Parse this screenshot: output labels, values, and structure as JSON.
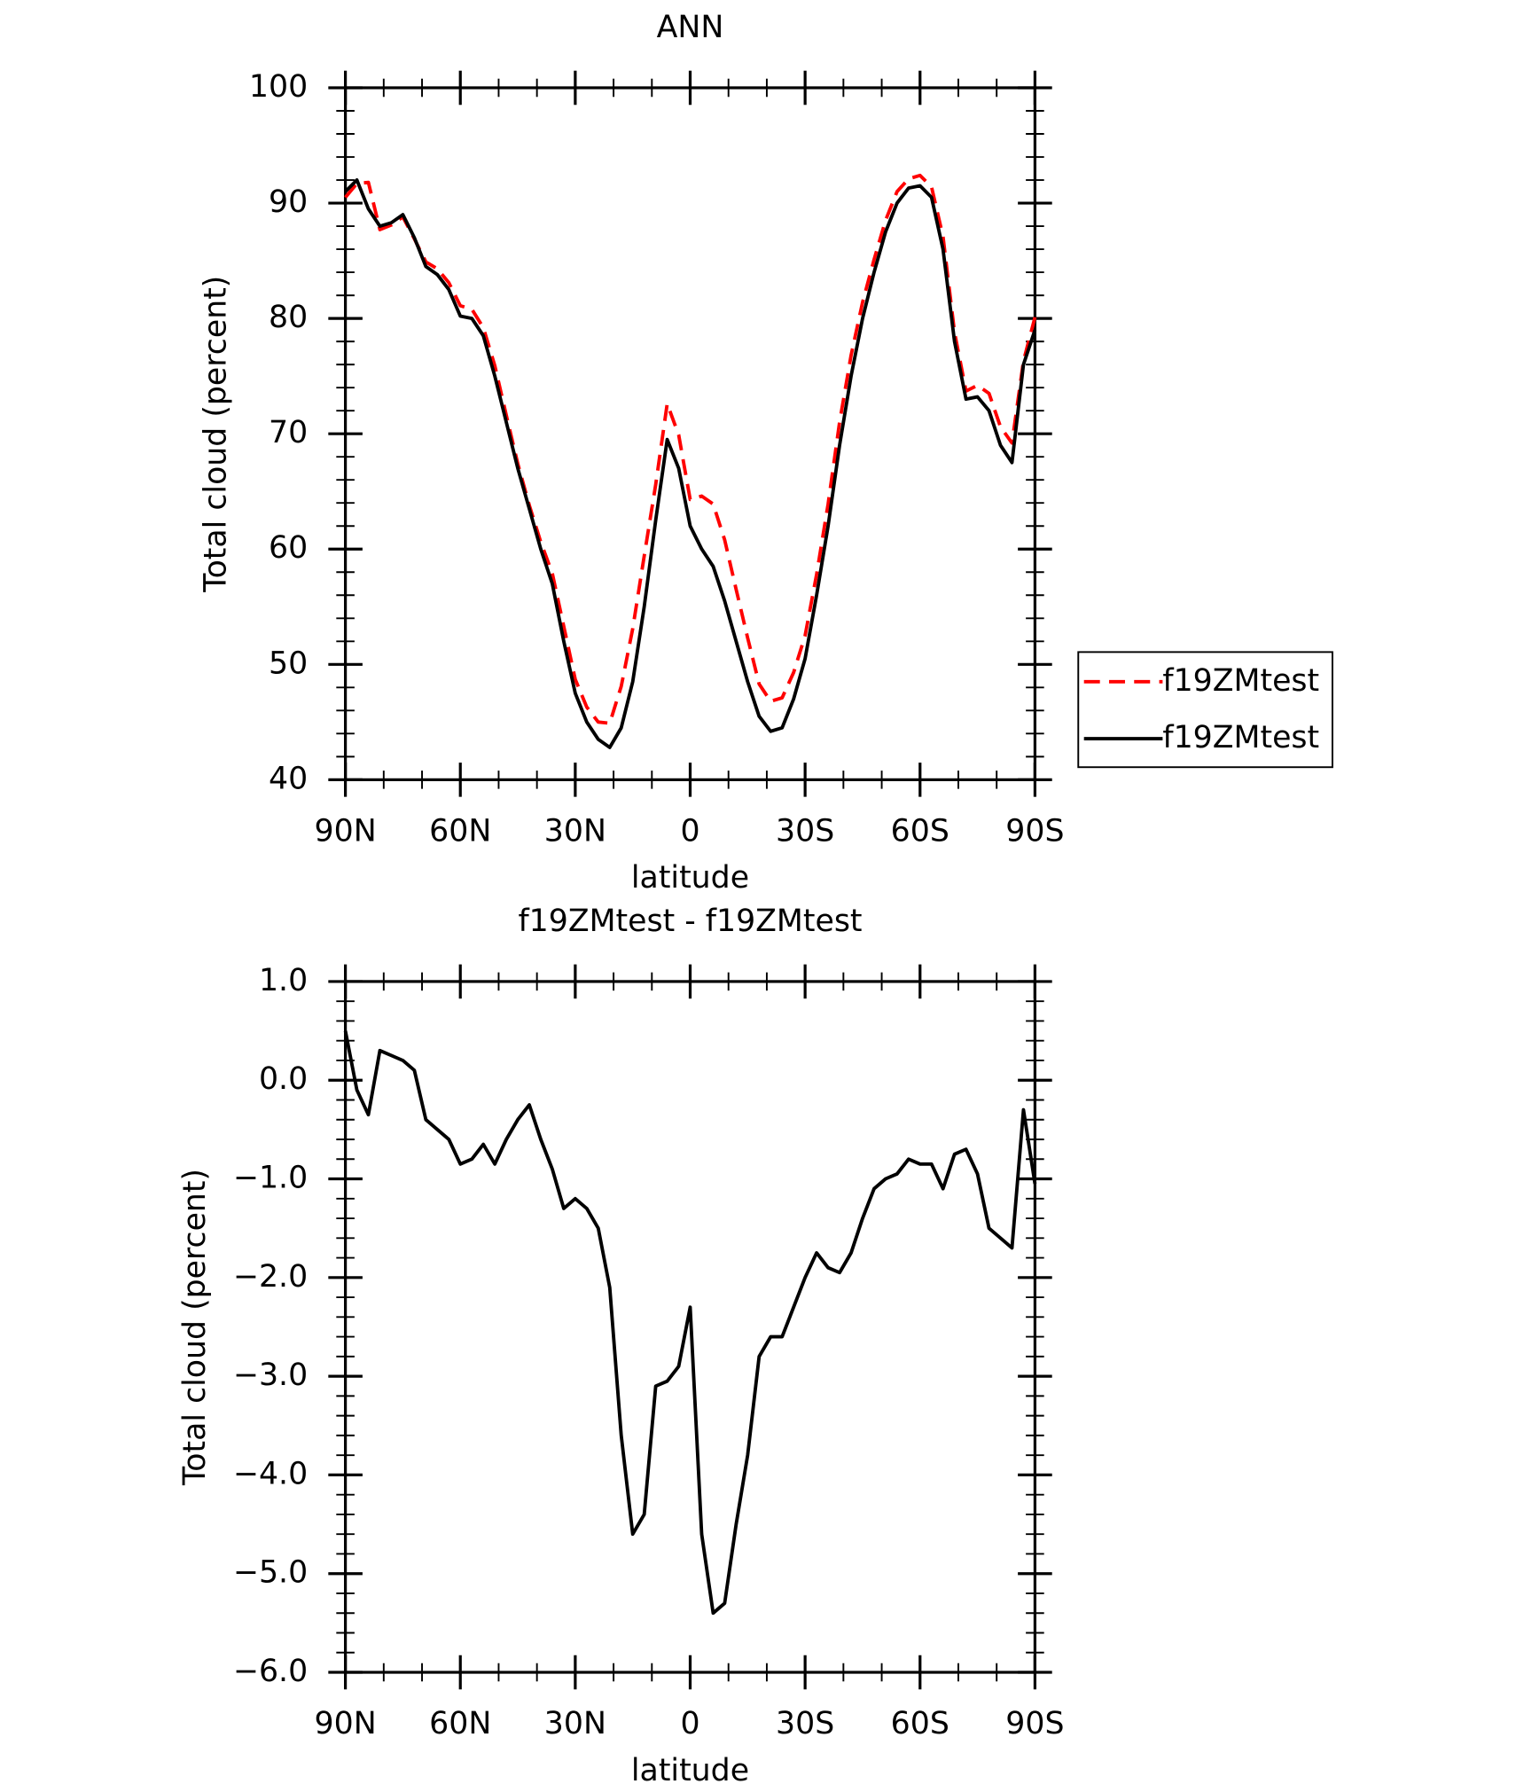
{
  "chart_data": [
    {
      "type": "line",
      "title": "ANN",
      "xlabel": "latitude",
      "ylabel": "Total cloud (percent)",
      "x": [
        90,
        87,
        84,
        81,
        78,
        75,
        72,
        69,
        66,
        63,
        60,
        57,
        54,
        51,
        48,
        45,
        42,
        39,
        36,
        33,
        30,
        27,
        24,
        21,
        18,
        15,
        12,
        9,
        6,
        3,
        0,
        -3,
        -6,
        -9,
        -12,
        -15,
        -18,
        -21,
        -24,
        -27,
        -30,
        -33,
        -36,
        -39,
        -42,
        -45,
        -48,
        -51,
        -54,
        -57,
        -60,
        -63,
        -66,
        -69,
        -72,
        -75,
        -78,
        -81,
        -84,
        -87,
        -90
      ],
      "xlim": [
        90,
        -90
      ],
      "xticks": [
        {
          "value": 90,
          "label": "90N"
        },
        {
          "value": 60,
          "label": "60N"
        },
        {
          "value": 30,
          "label": "30N"
        },
        0,
        {
          "value": -30,
          "label": "30S"
        },
        {
          "value": -60,
          "label": "60S"
        },
        {
          "value": -90,
          "label": "90S"
        }
      ],
      "ylim": [
        40,
        100
      ],
      "yticks": [
        40,
        50,
        60,
        70,
        80,
        90,
        100
      ],
      "legend": "right",
      "series": [
        {
          "name": "f19ZMtest",
          "color": "#ff0000",
          "style": "dashed",
          "values": [
            90.5,
            91.7,
            91.8,
            87.7,
            88.1,
            88.8,
            86.9,
            84.9,
            84.3,
            83.1,
            81.1,
            80.8,
            79.2,
            75.9,
            71.6,
            67.4,
            63.8,
            60.6,
            57.9,
            53.3,
            48.7,
            46.3,
            45,
            44.9,
            48.1,
            53.1,
            59.4,
            65.6,
            72.6,
            69.9,
            64.3,
            64.6,
            63.9,
            60.8,
            56.5,
            52.3,
            48.3,
            46.8,
            47.1,
            49.3,
            52.5,
            57.8,
            63.9,
            71,
            76.8,
            81.4,
            85.1,
            88.5,
            91,
            92.1,
            92.4,
            91.4,
            87.1,
            78.8,
            73.7,
            74.2,
            73.5,
            70.6,
            69.2,
            76.3,
            80.1
          ]
        },
        {
          "name": "f19ZMtest",
          "color": "#000000",
          "style": "solid",
          "values": [
            91,
            92,
            89.5,
            88,
            88.3,
            89,
            87,
            84.5,
            83.8,
            82.5,
            80.2,
            80,
            78.5,
            75,
            71,
            67,
            63.5,
            60,
            57,
            52,
            47.5,
            45,
            43.5,
            42.8,
            44.5,
            48.5,
            55,
            62.5,
            69.5,
            67,
            62,
            60,
            58.5,
            55.5,
            52,
            48.5,
            45.5,
            44.2,
            44.5,
            47,
            50.5,
            56,
            62,
            69,
            75,
            80,
            84,
            87.5,
            90,
            91.3,
            91.5,
            90.5,
            86,
            78,
            73,
            73.2,
            72,
            69,
            67.5,
            76,
            79
          ]
        }
      ]
    },
    {
      "type": "line",
      "title": "f19ZMtest - f19ZMtest",
      "xlabel": "latitude",
      "ylabel": "Total cloud (percent)",
      "x": [
        90,
        87,
        84,
        81,
        78,
        75,
        72,
        69,
        66,
        63,
        60,
        57,
        54,
        51,
        48,
        45,
        42,
        39,
        36,
        33,
        30,
        27,
        24,
        21,
        18,
        15,
        12,
        9,
        6,
        3,
        0,
        -3,
        -6,
        -9,
        -12,
        -15,
        -18,
        -21,
        -24,
        -27,
        -30,
        -33,
        -36,
        -39,
        -42,
        -45,
        -48,
        -51,
        -54,
        -57,
        -60,
        -63,
        -66,
        -69,
        -72,
        -75,
        -78,
        -81,
        -84,
        -87,
        -90
      ],
      "xlim": [
        90,
        -90
      ],
      "xticks": [
        {
          "value": 90,
          "label": "90N"
        },
        {
          "value": 60,
          "label": "60N"
        },
        {
          "value": 30,
          "label": "30N"
        },
        0,
        {
          "value": -30,
          "label": "30S"
        },
        {
          "value": -60,
          "label": "60S"
        },
        {
          "value": -90,
          "label": "90S"
        }
      ],
      "ylim": [
        -6,
        1
      ],
      "yticks": [
        {
          "value": -6,
          "label": "−6.0"
        },
        {
          "value": -5,
          "label": "−5.0"
        },
        {
          "value": -4,
          "label": "−4.0"
        },
        {
          "value": -3,
          "label": "−3.0"
        },
        {
          "value": -2,
          "label": "−2.0"
        },
        {
          "value": -1,
          "label": "−1.0"
        },
        {
          "value": 0,
          "label": "0.0"
        },
        {
          "value": 1,
          "label": "1.0"
        }
      ],
      "color": "#000000",
      "values": [
        0.5,
        -0.1,
        -0.35,
        0.3,
        0.25,
        0.2,
        0.1,
        -0.4,
        -0.5,
        -0.6,
        -0.85,
        -0.8,
        -0.65,
        -0.85,
        -0.6,
        -0.4,
        -0.25,
        -0.6,
        -0.9,
        -1.3,
        -1.2,
        -1.3,
        -1.5,
        -2.1,
        -3.6,
        -4.6,
        -4.4,
        -3.1,
        -3.05,
        -2.9,
        -2.3,
        -4.6,
        -5.4,
        -5.3,
        -4.5,
        -3.8,
        -2.8,
        -2.6,
        -2.6,
        -2.3,
        -2.0,
        -1.75,
        -1.9,
        -1.95,
        -1.75,
        -1.4,
        -1.1,
        -1.0,
        -0.95,
        -0.8,
        -0.85,
        -0.85,
        -1.1,
        -0.75,
        -0.7,
        -0.95,
        -1.5,
        -1.6,
        -1.7,
        -0.3,
        -1.05
      ]
    }
  ]
}
